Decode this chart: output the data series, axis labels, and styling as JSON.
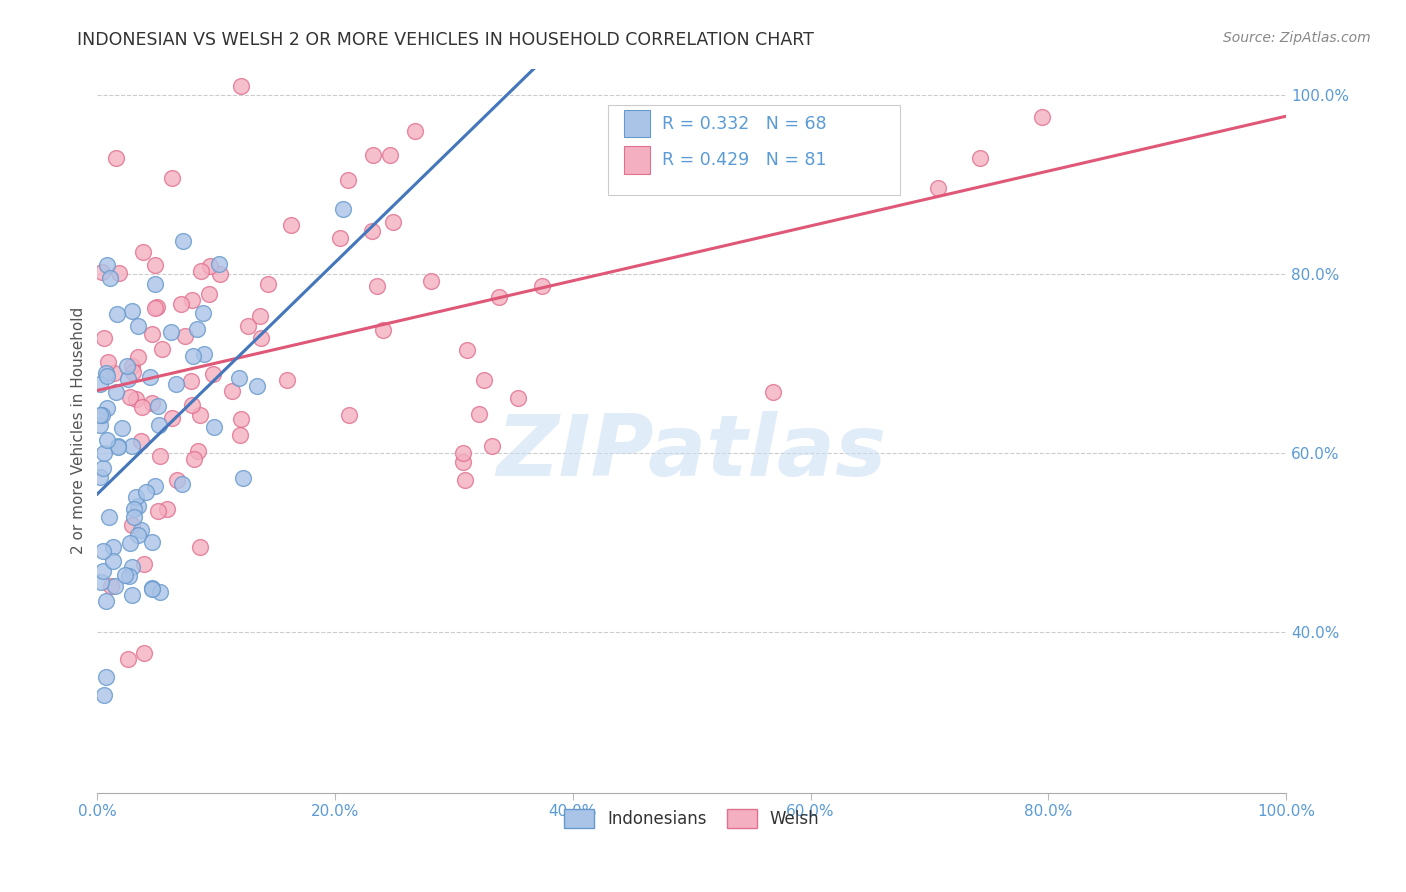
{
  "title": "INDONESIAN VS WELSH 2 OR MORE VEHICLES IN HOUSEHOLD CORRELATION CHART",
  "source": "Source: ZipAtlas.com",
  "ylabel": "2 or more Vehicles in Household",
  "R_indonesian": 0.332,
  "N_indonesian": 68,
  "R_welsh": 0.429,
  "N_welsh": 81,
  "blue_fill": "#aac4e8",
  "blue_edge": "#6699cc",
  "pink_fill": "#f4afc0",
  "pink_edge": "#e07090",
  "blue_line_color": "#4477bb",
  "pink_line_color": "#e05878",
  "gray_dash_color": "#aaaaaa",
  "tick_color": "#5b9bd5",
  "watermark_color": "#cde0f5",
  "title_color": "#333333",
  "source_color": "#888888",
  "ylabel_color": "#555555",
  "grid_color": "#cccccc",
  "xlim": [
    0.0,
    1.0
  ],
  "ylim": [
    0.22,
    1.03
  ],
  "xticks": [
    0.0,
    0.2,
    0.4,
    0.6,
    0.8,
    1.0
  ],
  "yticks_right": [
    0.4,
    0.6,
    0.8,
    1.0
  ],
  "xtick_labels": [
    "0.0%",
    "20.0%",
    "40.0%",
    "60.0%",
    "80.0%",
    "100.0%"
  ],
  "ytick_right_labels": [
    "40.0%",
    "60.0%",
    "80.0%",
    "100.0%"
  ],
  "legend_bottom": [
    "Indonesians",
    "Welsh"
  ],
  "indo_seed": 101,
  "welsh_seed": 202,
  "watermark_text": "ZIPatlas"
}
